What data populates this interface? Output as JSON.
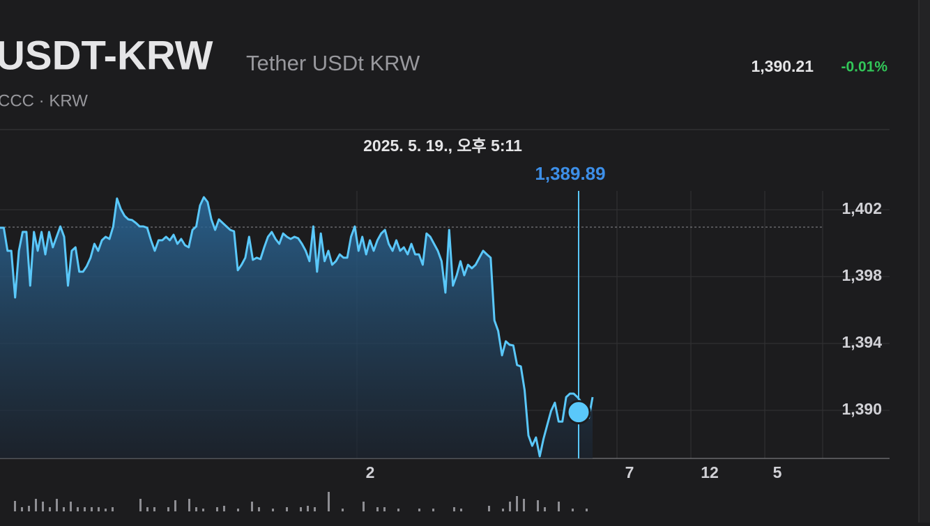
{
  "header": {
    "symbol": "USDT-KRW",
    "name": "Tether USDt KRW",
    "exchange": "CCC · KRW",
    "price": "1,390.21",
    "change": "-0.01%"
  },
  "chart_data": {
    "type": "line",
    "selected": {
      "date": "2025. 5. 19., 오후 5:11",
      "value": 1389.89,
      "value_label": "1,389.89"
    },
    "reference_line": 1400.96,
    "series": [
      {
        "color": "#5ac8fa",
        "values": [
          1400.92,
          1400.92,
          1399.54,
          1399.54,
          1396.75,
          1399.54,
          1400.67,
          1400.67,
          1397.46,
          1400.67,
          1399.54,
          1400.67,
          1399.33,
          1400.67,
          1399.75,
          1400.38,
          1401.0,
          1400.38,
          1397.46,
          1399.54,
          1399.75,
          1398.29,
          1398.29,
          1398.63,
          1399.13,
          1399.96,
          1399.54,
          1400.17,
          1400.38,
          1400.25,
          1401.0,
          1402.67,
          1402.04,
          1401.63,
          1401.42,
          1401.38,
          1401.21,
          1401.0,
          1401.0,
          1400.92,
          1400.17,
          1399.54,
          1400.17,
          1400.17,
          1400.38,
          1400.17,
          1400.5,
          1399.96,
          1400.25,
          1399.88,
          1399.75,
          1400.79,
          1401.0,
          1402.25,
          1402.75,
          1402.46,
          1401.42,
          1400.79,
          1401.42,
          1401.21,
          1401.0,
          1400.79,
          1400.71,
          1398.38,
          1398.71,
          1399.13,
          1400.38,
          1399.0,
          1399.13,
          1399.04,
          1399.75,
          1400.38,
          1400.67,
          1400.25,
          1399.96,
          1400.58,
          1400.38,
          1400.25,
          1400.38,
          1400.29,
          1399.96,
          1399.54,
          1398.92,
          1401.0,
          1398.29,
          1400.58,
          1398.92,
          1399.54,
          1398.71,
          1398.92,
          1399.33,
          1399.13,
          1399.13,
          1400.38,
          1401.0,
          1399.54,
          1400.38,
          1399.33,
          1400.17,
          1399.54,
          1400.17,
          1400.58,
          1400.79,
          1399.96,
          1399.54,
          1400.17,
          1399.54,
          1399.75,
          1399.33,
          1399.96,
          1399.33,
          1399.33,
          1398.71,
          1400.58,
          1400.38,
          1399.96,
          1399.54,
          1398.92,
          1397.04,
          1400.79,
          1397.46,
          1398.08,
          1398.92,
          1398.08,
          1398.71,
          1398.5,
          1398.71,
          1399.13,
          1399.54,
          1399.33,
          1399.13,
          1395.38,
          1394.75,
          1393.29,
          1394.13,
          1393.92,
          1393.88,
          1392.71,
          1392.63,
          1391.21,
          1388.5,
          1387.88,
          1388.38,
          1387.25,
          1388.29,
          1389.13,
          1389.96,
          1390.46,
          1389.33,
          1389.33,
          1390.79,
          1391.0,
          1391.0,
          1390.79,
          1390.5,
          1389.54,
          1389.54,
          1390.79
        ]
      }
    ],
    "ylim": [
      1387.125,
      1403.125
    ],
    "yticks": [
      {
        "value": 1402,
        "label": "1,402"
      },
      {
        "value": 1398,
        "label": "1,398"
      },
      {
        "value": 1394,
        "label": "1,394"
      },
      {
        "value": 1390,
        "label": "1,390"
      }
    ],
    "xtick_labels": [
      "2",
      "7",
      "12",
      "5"
    ],
    "volume": [
      0,
      0,
      15,
      6,
      8,
      18,
      14,
      6,
      18,
      6,
      14,
      6,
      6,
      6,
      6,
      4,
      6,
      0,
      0,
      0,
      18,
      6,
      6,
      0,
      6,
      16,
      0,
      18,
      6,
      4,
      0,
      6,
      8,
      0,
      4,
      0,
      14,
      6,
      0,
      4,
      0,
      6,
      0,
      6,
      8,
      6,
      0,
      28,
      0,
      4,
      0,
      0,
      14,
      0,
      6,
      6,
      0,
      4,
      0,
      0,
      4,
      0,
      4,
      0,
      0,
      6,
      4,
      0,
      0,
      0,
      8,
      0,
      4,
      14,
      22,
      18,
      0,
      16,
      6,
      0,
      14,
      0,
      4,
      0,
      4,
      0
    ],
    "grid": true
  }
}
